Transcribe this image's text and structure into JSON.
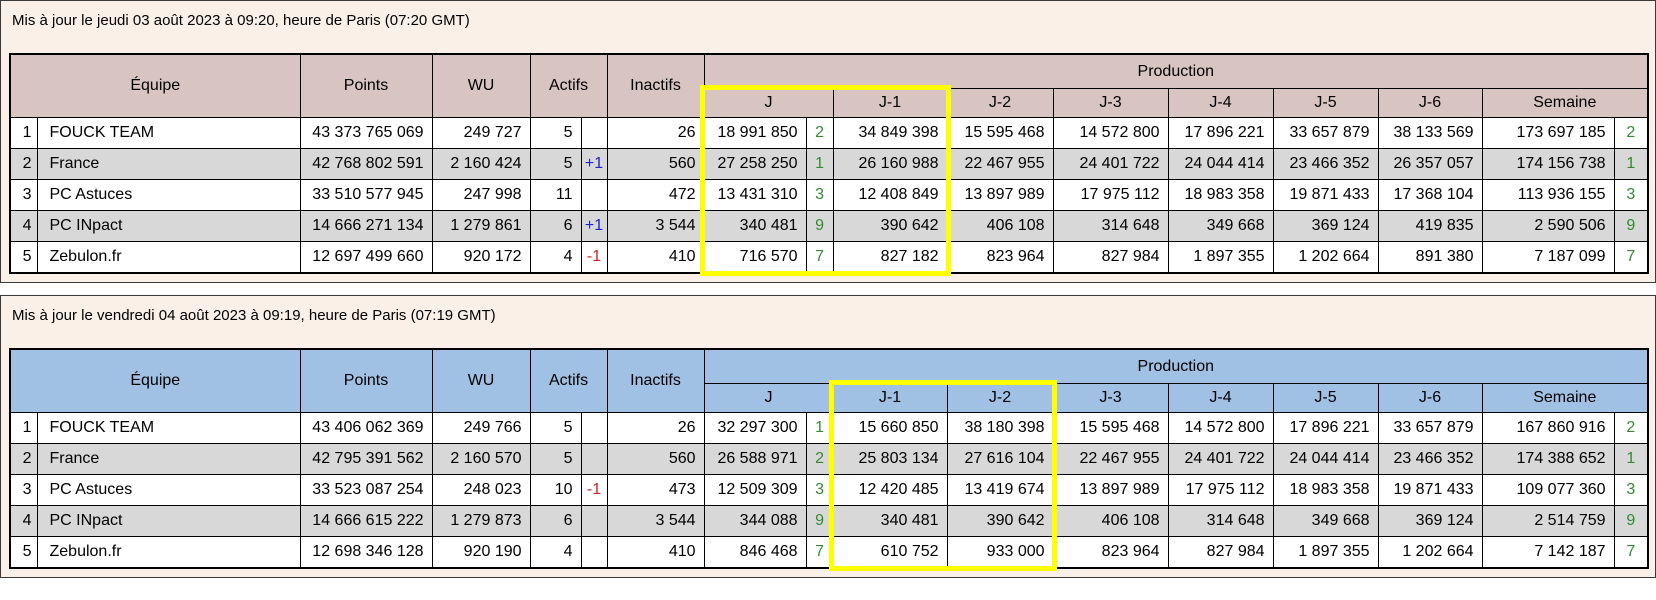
{
  "columns": {
    "equipe": "Équipe",
    "points": "Points",
    "wu": "WU",
    "actifs": "Actifs",
    "inactifs": "Inactifs",
    "production": "Production",
    "days": [
      "J",
      "J-1",
      "J-2",
      "J-3",
      "J-4",
      "J-5",
      "J-6",
      "Semaine"
    ]
  },
  "colors": {
    "table1_header": "#d8c5c2",
    "table2_header": "#a1c1e4",
    "row_alt": "#d8d8d8",
    "rank_green": "#338a33",
    "delta_up_blue": "#2222cc",
    "delta_down_red": "#cc2222",
    "highlight_yellow": "#ffff00",
    "panel_cream": "#fbf0e8"
  },
  "tables": [
    {
      "title": "Mis à jour le jeudi 03 août 2023 à 09:20, heure de Paris (07:20 GMT)",
      "header_color": "#d8c5c2",
      "highlight_days": [
        "J",
        "J-1"
      ],
      "rows": [
        {
          "rank": "1",
          "team": "FOUCK TEAM",
          "points": "43 373 765 069",
          "wu": "249 727",
          "actifs": "5",
          "delta": "",
          "inactifs": "26",
          "j": "18 991 850",
          "j_rank": "2",
          "j1": "34 849 398",
          "j2": "15 595 468",
          "j3": "14 572 800",
          "j4": "17 896 221",
          "j5": "33 657 879",
          "j6": "38 133 569",
          "semaine": "173 697 185",
          "sem_rank": "2"
        },
        {
          "rank": "2",
          "team": "France",
          "points": "42 768 802 591",
          "wu": "2 160 424",
          "actifs": "5",
          "delta": "+1",
          "inactifs": "560",
          "j": "27 258 250",
          "j_rank": "1",
          "j1": "26 160 988",
          "j2": "22 467 955",
          "j3": "24 401 722",
          "j4": "24 044 414",
          "j5": "23 466 352",
          "j6": "26 357 057",
          "semaine": "174 156 738",
          "sem_rank": "1"
        },
        {
          "rank": "3",
          "team": "PC Astuces",
          "points": "33 510 577 945",
          "wu": "247 998",
          "actifs": "11",
          "delta": "",
          "inactifs": "472",
          "j": "13 431 310",
          "j_rank": "3",
          "j1": "12 408 849",
          "j2": "13 897 989",
          "j3": "17 975 112",
          "j4": "18 983 358",
          "j5": "19 871 433",
          "j6": "17 368 104",
          "semaine": "113 936 155",
          "sem_rank": "3"
        },
        {
          "rank": "4",
          "team": "PC INpact",
          "points": "14 666 271 134",
          "wu": "1 279 861",
          "actifs": "6",
          "delta": "+1",
          "inactifs": "3 544",
          "j": "340 481",
          "j_rank": "9",
          "j1": "390 642",
          "j2": "406 108",
          "j3": "314 648",
          "j4": "349 668",
          "j5": "369 124",
          "j6": "419 835",
          "semaine": "2 590 506",
          "sem_rank": "9"
        },
        {
          "rank": "5",
          "team": "Zebulon.fr",
          "points": "12 697 499 660",
          "wu": "920 172",
          "actifs": "4",
          "delta": "-1",
          "inactifs": "410",
          "j": "716 570",
          "j_rank": "7",
          "j1": "827 182",
          "j2": "823 964",
          "j3": "827 984",
          "j4": "1 897 355",
          "j5": "1 202 664",
          "j6": "891 380",
          "semaine": "7 187 099",
          "sem_rank": "7"
        }
      ]
    },
    {
      "title": "Mis à jour le vendredi 04 août 2023 à 09:19, heure de Paris (07:19 GMT)",
      "header_color": "#a1c1e4",
      "highlight_days": [
        "J-1",
        "J-2"
      ],
      "rows": [
        {
          "rank": "1",
          "team": "FOUCK TEAM",
          "points": "43 406 062 369",
          "wu": "249 766",
          "actifs": "5",
          "delta": "",
          "inactifs": "26",
          "j": "32 297 300",
          "j_rank": "1",
          "j1": "15 660 850",
          "j2": "38 180 398",
          "j3": "15 595 468",
          "j4": "14 572 800",
          "j5": "17 896 221",
          "j6": "33 657 879",
          "semaine": "167 860 916",
          "sem_rank": "2"
        },
        {
          "rank": "2",
          "team": "France",
          "points": "42 795 391 562",
          "wu": "2 160 570",
          "actifs": "5",
          "delta": "",
          "inactifs": "560",
          "j": "26 588 971",
          "j_rank": "2",
          "j1": "25 803 134",
          "j2": "27 616 104",
          "j3": "22 467 955",
          "j4": "24 401 722",
          "j5": "24 044 414",
          "j6": "23 466 352",
          "semaine": "174 388 652",
          "sem_rank": "1"
        },
        {
          "rank": "3",
          "team": "PC Astuces",
          "points": "33 523 087 254",
          "wu": "248 023",
          "actifs": "10",
          "delta": "-1",
          "inactifs": "473",
          "j": "12 509 309",
          "j_rank": "3",
          "j1": "12 420 485",
          "j2": "13 419 674",
          "j3": "13 897 989",
          "j4": "17 975 112",
          "j5": "18 983 358",
          "j6": "19 871 433",
          "semaine": "109 077 360",
          "sem_rank": "3"
        },
        {
          "rank": "4",
          "team": "PC INpact",
          "points": "14 666 615 222",
          "wu": "1 279 873",
          "actifs": "6",
          "delta": "",
          "inactifs": "3 544",
          "j": "344 088",
          "j_rank": "9",
          "j1": "340 481",
          "j2": "390 642",
          "j3": "406 108",
          "j4": "314 648",
          "j5": "349 668",
          "j6": "369 124",
          "semaine": "2 514 759",
          "sem_rank": "9"
        },
        {
          "rank": "5",
          "team": "Zebulon.fr",
          "points": "12 698 346 128",
          "wu": "920 190",
          "actifs": "4",
          "delta": "",
          "inactifs": "410",
          "j": "846 468",
          "j_rank": "7",
          "j1": "610 752",
          "j2": "933 000",
          "j3": "823 964",
          "j4": "827 984",
          "j5": "1 897 355",
          "j6": "1 202 664",
          "semaine": "7 142 187",
          "sem_rank": "7"
        }
      ]
    }
  ]
}
